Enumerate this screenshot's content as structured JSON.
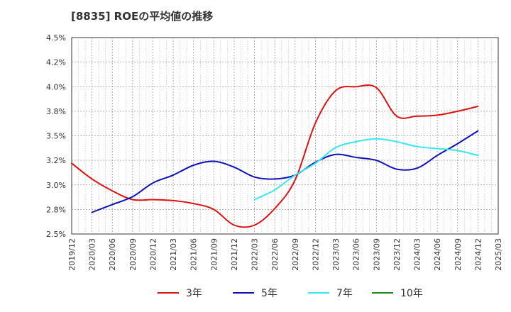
{
  "chart_data": {
    "type": "line",
    "title": "[8835]  ROEの平均値の推移",
    "xlabel": "",
    "ylabel": "",
    "ylim": [
      2.5,
      4.5
    ],
    "yticks": [
      "2.5%",
      "2.8%",
      "3.0%",
      "3.2%",
      "3.5%",
      "3.8%",
      "4.0%",
      "4.2%",
      "4.5%"
    ],
    "ytick_values": [
      2.5,
      2.75,
      3.0,
      3.25,
      3.5,
      3.75,
      4.0,
      4.25,
      4.5
    ],
    "x_categories": [
      "2019/12",
      "2020/03",
      "2020/06",
      "2020/09",
      "2020/12",
      "2021/03",
      "2021/06",
      "2021/09",
      "2021/12",
      "2022/03",
      "2022/06",
      "2022/09",
      "2022/12",
      "2023/03",
      "2023/06",
      "2023/09",
      "2023/12",
      "2024/03",
      "2024/06",
      "2024/09",
      "2024/12",
      "2025/03"
    ],
    "grid": true,
    "legend_position": "bottom",
    "series": [
      {
        "name": "3年",
        "color": "#dd1111",
        "start_index": 0,
        "values": [
          3.22,
          3.06,
          2.94,
          2.85,
          2.85,
          2.84,
          2.81,
          2.75,
          2.59,
          2.59,
          2.76,
          3.05,
          3.63,
          3.96,
          4.0,
          3.99,
          3.7,
          3.7,
          3.71,
          3.75,
          3.8
        ]
      },
      {
        "name": "5年",
        "color": "#1111bb",
        "start_index": 1,
        "values": [
          2.72,
          2.8,
          2.88,
          3.02,
          3.1,
          3.2,
          3.24,
          3.18,
          3.08,
          3.06,
          3.1,
          3.23,
          3.31,
          3.28,
          3.25,
          3.16,
          3.17,
          3.3,
          3.42,
          3.55
        ]
      },
      {
        "name": "7年",
        "color": "#33e8ee",
        "start_index": 9,
        "values": [
          2.85,
          2.95,
          3.1,
          3.22,
          3.38,
          3.44,
          3.47,
          3.44,
          3.39,
          3.37,
          3.35,
          3.3
        ]
      },
      {
        "name": "10年",
        "color": "#228822",
        "start_index": 0,
        "values": []
      }
    ]
  }
}
